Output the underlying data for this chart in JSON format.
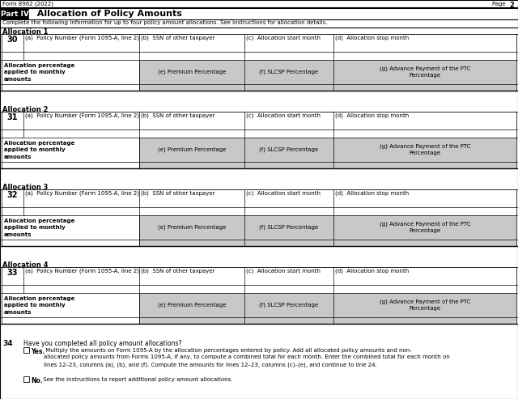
{
  "header_left": "Form 8962 (2022)",
  "header_right": "Page  2",
  "part_label": "Part IV",
  "part_title": "  Allocation of Policy Amounts",
  "instructions": "Complete the following information for up to four policy amount allocations. See instructions for allocation details.",
  "allocations": [
    {
      "num": "Allocation 1",
      "line": "30"
    },
    {
      "num": "Allocation 2",
      "line": "31"
    },
    {
      "num": "Allocation 3",
      "line": "32"
    },
    {
      "num": "Allocation 4",
      "line": "33"
    }
  ],
  "col_a": "(a)  Policy Number (Form 1095-A, line 2)",
  "col_b": "(b)  SSN of other taxpayer",
  "col_c": "(c)  Allocation start month",
  "col_d": "(d)  Allocation stop month",
  "row2_label": "Allocation percentage\napplied to monthly\namounts",
  "col_e": "(e) Premium Percentage",
  "col_f": "(f) SLCSP Percentage",
  "col_g": "(g) Advance Payment of the PTC\nPercentage",
  "line34_num": "34",
  "line34_q": "Have you completed all policy amount allocations?",
  "line34_yes_label": "Yes.",
  "line34_yes_text": " Multiply the amounts on Form 1095-A by the allocation percentages entered by policy. Add all allocated policy amounts and non-\nallocated policy amounts from Forms 1095-A, if any, to compute a combined total for each month. Enter the combined total for each month on\nlines 12–23, columns (a), (b), and (f). Compute the amounts for lines 12–23, columns (c)–(e), and continue to line 24.",
  "line34_no_label": "No.",
  "line34_no_text": " See the instructions to report additional policy amount allocations.",
  "bg_gray": "#c8c8c8",
  "bg_white": "#ffffff",
  "border_color": "#000000"
}
